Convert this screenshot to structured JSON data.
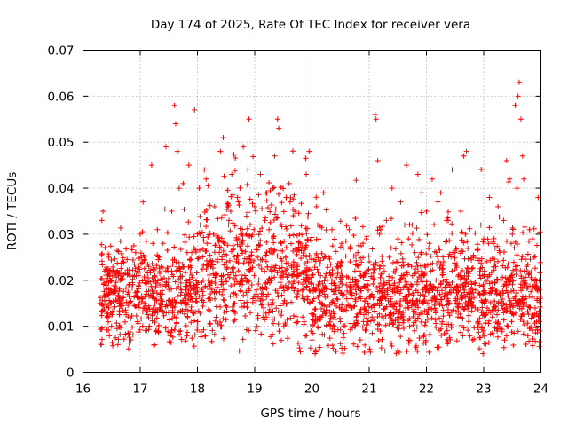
{
  "chart_data": {
    "type": "scatter",
    "title": "Day 174 of 2025, Rate Of TEC Index for receiver vera",
    "xlabel": "GPS time / hours",
    "ylabel": "ROTI / TECUs",
    "xlim": [
      16,
      24
    ],
    "ylim": [
      0,
      0.07
    ],
    "xticks": [
      16,
      17,
      18,
      19,
      20,
      21,
      22,
      23,
      24
    ],
    "xtick_labels": [
      "16",
      "17",
      "18",
      "19",
      "20",
      "21",
      "22",
      "23",
      "24"
    ],
    "yticks": [
      0,
      0.01,
      0.02,
      0.03,
      0.04,
      0.05,
      0.06,
      0.07
    ],
    "ytick_labels": [
      "0",
      "0.01",
      "0.02",
      "0.03",
      "0.04",
      "0.05",
      "0.06",
      "0.07"
    ],
    "grid": true,
    "marker": "+",
    "color": "#ff0000",
    "series": [
      {
        "name": "ROTI",
        "x": [
          16.3,
          16.33,
          16.35,
          16.38,
          16.4,
          16.42,
          16.45,
          16.48,
          16.5,
          16.55,
          16.6,
          16.65,
          16.7,
          16.75,
          16.8,
          16.85,
          16.9,
          16.95,
          17.0,
          17.05,
          17.1,
          17.15,
          17.2,
          17.25,
          17.3,
          17.35,
          17.4,
          17.45,
          17.5,
          17.55,
          17.6,
          17.62,
          17.65,
          17.7,
          17.75,
          17.8,
          17.85,
          17.9,
          17.95,
          18.0,
          18.05,
          18.1,
          18.15,
          18.2,
          18.25,
          18.3,
          18.35,
          18.4,
          18.45,
          18.5,
          18.55,
          18.6,
          18.65,
          18.7,
          18.75,
          18.8,
          18.85,
          18.9,
          18.95,
          19.0,
          19.05,
          19.1,
          19.15,
          19.2,
          19.25,
          19.3,
          19.35,
          19.4,
          19.42,
          19.45,
          19.5,
          19.55,
          19.6,
          19.65,
          19.7,
          19.75,
          19.8,
          19.85,
          19.9,
          19.95,
          20.0,
          20.05,
          20.1,
          20.15,
          20.2,
          20.25,
          20.3,
          20.35,
          20.4,
          20.45,
          20.5,
          20.55,
          20.6,
          20.65,
          20.7,
          20.75,
          20.8,
          20.85,
          20.9,
          20.95,
          21.0,
          21.05,
          21.1,
          21.12,
          21.15,
          21.2,
          21.25,
          21.3,
          21.35,
          21.4,
          21.45,
          21.5,
          21.55,
          21.6,
          21.65,
          21.7,
          21.75,
          21.8,
          21.85,
          21.9,
          21.95,
          22.0,
          22.05,
          22.1,
          22.15,
          22.2,
          22.25,
          22.3,
          22.35,
          22.4,
          22.45,
          22.5,
          22.55,
          22.6,
          22.65,
          22.7,
          22.75,
          22.8,
          22.85,
          22.9,
          22.95,
          23.0,
          23.05,
          23.1,
          23.15,
          23.2,
          23.25,
          23.3,
          23.35,
          23.4,
          23.45,
          23.5,
          23.55,
          23.6,
          23.62,
          23.65,
          23.68,
          23.7,
          23.75,
          23.8,
          23.85,
          23.9,
          23.95,
          24.0,
          16.32,
          16.45,
          16.62,
          16.78,
          16.92,
          17.08,
          17.22,
          17.38,
          17.52,
          17.68,
          17.82,
          17.98,
          18.12,
          18.28,
          18.42,
          18.58,
          18.72,
          18.88,
          19.02,
          19.18,
          19.32,
          19.48,
          19.62,
          19.78,
          19.92,
          20.08,
          20.22,
          20.38,
          20.52,
          20.68,
          20.82,
          20.98,
          21.18,
          21.32,
          21.48,
          21.62,
          21.78,
          21.92,
          22.08,
          22.22,
          22.38,
          22.52,
          22.68,
          22.82,
          22.98,
          23.12,
          23.28,
          23.42,
          23.58,
          23.72,
          23.88,
          23.98
        ],
        "y": [
          0.015,
          0.033,
          0.035,
          0.022,
          0.018,
          0.012,
          0.025,
          0.02,
          0.01,
          0.018,
          0.022,
          0.015,
          0.024,
          0.013,
          0.019,
          0.027,
          0.021,
          0.011,
          0.03,
          0.037,
          0.017,
          0.023,
          0.045,
          0.016,
          0.031,
          0.014,
          0.028,
          0.049,
          0.018,
          0.035,
          0.058,
          0.054,
          0.048,
          0.022,
          0.041,
          0.015,
          0.045,
          0.026,
          0.057,
          0.011,
          0.032,
          0.02,
          0.042,
          0.028,
          0.018,
          0.036,
          0.024,
          0.048,
          0.051,
          0.02,
          0.033,
          0.043,
          0.015,
          0.038,
          0.027,
          0.049,
          0.03,
          0.055,
          0.019,
          0.036,
          0.025,
          0.043,
          0.017,
          0.039,
          0.031,
          0.022,
          0.047,
          0.055,
          0.053,
          0.028,
          0.015,
          0.038,
          0.041,
          0.021,
          0.035,
          0.011,
          0.028,
          0.018,
          0.043,
          0.048,
          0.007,
          0.018,
          0.032,
          0.021,
          0.039,
          0.013,
          0.025,
          0.031,
          0.017,
          0.023,
          0.011,
          0.027,
          0.019,
          0.031,
          0.014,
          0.022,
          0.026,
          0.016,
          0.021,
          0.029,
          0.024,
          0.012,
          0.056,
          0.055,
          0.046,
          0.031,
          0.02,
          0.033,
          0.025,
          0.04,
          0.015,
          0.029,
          0.037,
          0.021,
          0.045,
          0.018,
          0.032,
          0.026,
          0.043,
          0.013,
          0.021,
          0.035,
          0.028,
          0.042,
          0.016,
          0.037,
          0.039,
          0.024,
          0.033,
          0.019,
          0.044,
          0.026,
          0.012,
          0.035,
          0.047,
          0.048,
          0.022,
          0.018,
          0.014,
          0.011,
          0.032,
          0.029,
          0.024,
          0.038,
          0.012,
          0.027,
          0.036,
          0.02,
          0.015,
          0.046,
          0.042,
          0.03,
          0.058,
          0.06,
          0.063,
          0.055,
          0.047,
          0.042,
          0.023,
          0.031,
          0.029,
          0.019,
          0.038,
          0.027,
          0.006,
          0.014,
          0.021,
          0.017,
          0.026,
          0.015,
          0.028,
          0.019,
          0.023,
          0.04,
          0.026,
          0.016,
          0.044,
          0.03,
          0.021,
          0.035,
          0.029,
          0.044,
          0.017,
          0.033,
          0.04,
          0.022,
          0.037,
          0.03,
          0.024,
          0.036,
          0.017,
          0.012,
          0.028,
          0.016,
          0.022,
          0.011,
          0.03,
          0.017,
          0.024,
          0.032,
          0.015,
          0.039,
          0.022,
          0.027,
          0.033,
          0.018,
          0.03,
          0.025,
          0.021,
          0.013,
          0.026,
          0.019,
          0.04,
          0.016,
          0.025,
          0.009
        ]
      }
    ],
    "noise": {
      "count": 2400,
      "seed": 174,
      "x_range": [
        16.3,
        24.0
      ],
      "windows": [
        {
          "x": [
            16.3,
            18.0
          ],
          "y_base": 0.0165,
          "y_spread": 0.011
        },
        {
          "x": [
            18.0,
            19.95
          ],
          "y_base": 0.022,
          "y_spread": 0.015
        },
        {
          "x": [
            19.95,
            24.0
          ],
          "y_base": 0.0165,
          "y_spread": 0.012
        }
      ]
    }
  }
}
